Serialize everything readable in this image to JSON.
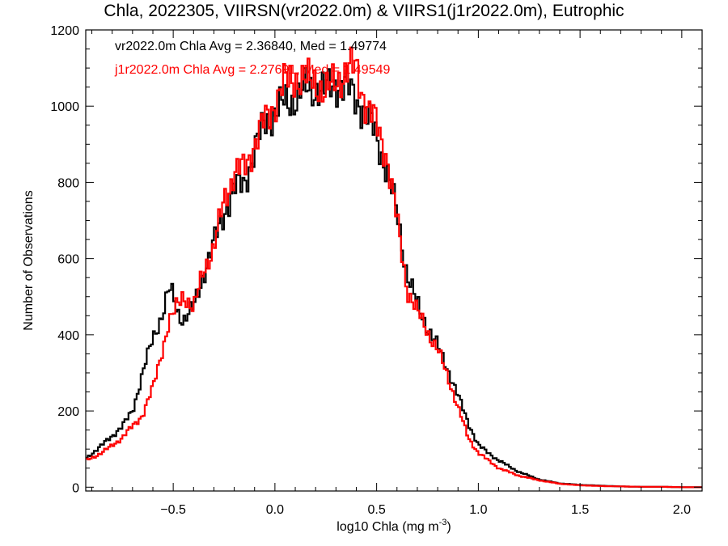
{
  "chart_data": {
    "type": "line",
    "title": "Chla, 2022305, VIIRSN(vr2022.0m) & VIIRS1(j1r2022.0m), Eutrophic",
    "xlabel_main": "log10 Chla (mg m",
    "xlabel_sup": "-3",
    "xlabel_close": ")",
    "ylabel": "Number of Observations",
    "xlim": [
      -0.93,
      2.1
    ],
    "ylim": [
      -10,
      1200
    ],
    "xticks": [
      -0.5,
      0.0,
      0.5,
      1.0,
      1.5,
      2.0
    ],
    "xtick_labels": [
      "−0.5",
      "0.0",
      "0.5",
      "1.0",
      "1.5",
      "2.0"
    ],
    "yticks": [
      0,
      200,
      400,
      600,
      800,
      1000,
      1200
    ],
    "ytick_labels": [
      "0",
      "200",
      "400",
      "600",
      "800",
      "1000",
      "1200"
    ],
    "grid": false,
    "legend_position": "top-left",
    "series": [
      {
        "name": "vr2022.0m",
        "color": "#000000",
        "legend_text": "vr2022.0m Chla Avg = 2.36840, Med = 1.49774",
        "x": [
          -0.93,
          -0.85,
          -0.75,
          -0.7,
          -0.65,
          -0.6,
          -0.55,
          -0.52,
          -0.5,
          -0.48,
          -0.45,
          -0.4,
          -0.35,
          -0.3,
          -0.25,
          -0.2,
          -0.15,
          -0.1,
          -0.05,
          0.0,
          0.05,
          0.1,
          0.15,
          0.2,
          0.25,
          0.3,
          0.35,
          0.4,
          0.45,
          0.5,
          0.55,
          0.6,
          0.65,
          0.7,
          0.75,
          0.8,
          0.85,
          0.9,
          0.95,
          1.0,
          1.05,
          1.1,
          1.15,
          1.2,
          1.3,
          1.4,
          1.5,
          1.6,
          1.7,
          1.8,
          1.9,
          2.0,
          2.1
        ],
        "y": [
          75,
          110,
          160,
          200,
          300,
          390,
          460,
          520,
          500,
          460,
          440,
          470,
          560,
          640,
          720,
          780,
          800,
          880,
          960,
          980,
          1010,
          1020,
          1040,
          1050,
          1040,
          1060,
          1050,
          1020,
          980,
          920,
          830,
          720,
          560,
          480,
          420,
          370,
          310,
          240,
          170,
          110,
          90,
          70,
          55,
          40,
          20,
          10,
          6,
          4,
          2,
          1,
          1,
          0,
          0
        ]
      },
      {
        "name": "j1r2022.0m",
        "color": "#ff0000",
        "legend_text": "j1r2022.0m Chla Avg = 2.27691, Med = 1.49549",
        "x": [
          -0.93,
          -0.85,
          -0.75,
          -0.7,
          -0.65,
          -0.6,
          -0.55,
          -0.52,
          -0.5,
          -0.48,
          -0.45,
          -0.4,
          -0.35,
          -0.3,
          -0.25,
          -0.2,
          -0.15,
          -0.1,
          -0.05,
          0.0,
          0.05,
          0.1,
          0.15,
          0.2,
          0.25,
          0.3,
          0.35,
          0.4,
          0.45,
          0.5,
          0.55,
          0.6,
          0.65,
          0.7,
          0.75,
          0.8,
          0.85,
          0.9,
          0.95,
          1.0,
          1.05,
          1.1,
          1.15,
          1.2,
          1.3,
          1.4,
          1.5,
          1.6,
          1.7,
          1.8,
          1.9,
          2.0,
          2.1
        ],
        "y": [
          70,
          90,
          130,
          160,
          190,
          260,
          370,
          430,
          450,
          480,
          510,
          460,
          580,
          620,
          760,
          820,
          840,
          900,
          960,
          1010,
          1060,
          1080,
          1060,
          1070,
          1030,
          1070,
          1090,
          1100,
          1000,
          950,
          870,
          700,
          520,
          460,
          410,
          360,
          290,
          210,
          130,
          90,
          70,
          50,
          40,
          30,
          18,
          9,
          5,
          3,
          2,
          1,
          1,
          0,
          0
        ]
      }
    ]
  }
}
